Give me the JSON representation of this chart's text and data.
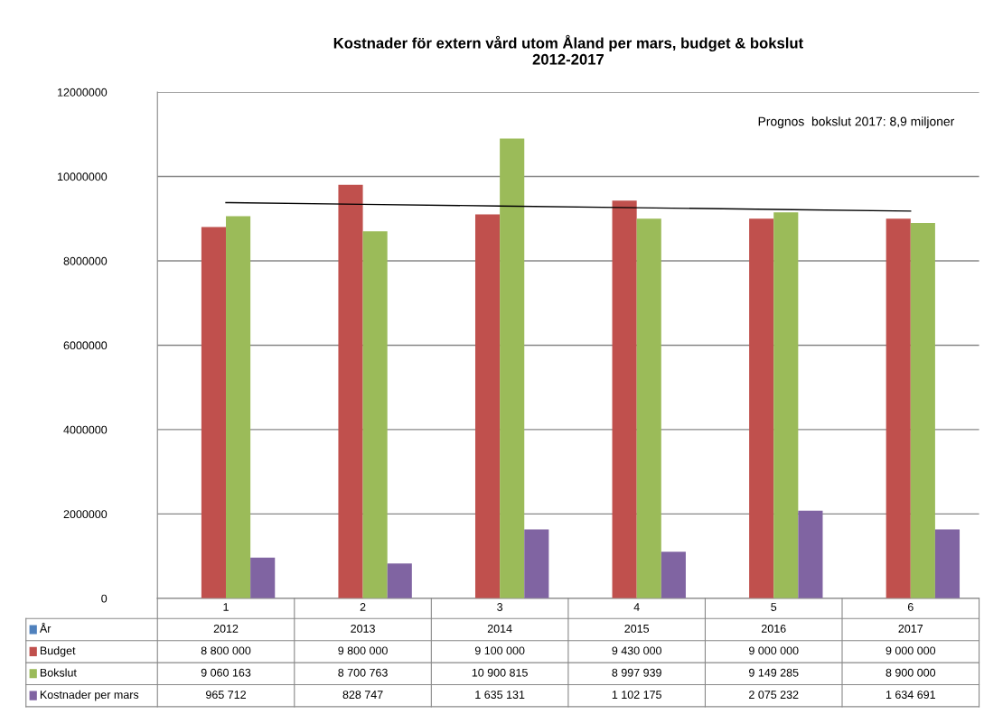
{
  "chart_data": {
    "type": "bar",
    "title": "Kostnader för extern vård utom Åland per mars, budget & bokslut\n2012-2017",
    "categories": [
      "1",
      "2",
      "3",
      "4",
      "5",
      "6"
    ],
    "series": [
      {
        "name": "År",
        "color": "#4f81bd",
        "values": [
          2012,
          2013,
          2014,
          2015,
          2016,
          2017
        ],
        "value_labels": [
          "2012",
          "2013",
          "2014",
          "2015",
          "2016",
          "2017"
        ]
      },
      {
        "name": "Budget",
        "color": "#c0504d",
        "values": [
          8800000,
          9800000,
          9100000,
          9430000,
          9000000,
          9000000
        ],
        "value_labels": [
          "8 800 000",
          "9 800 000",
          "9 100 000",
          "9 430 000",
          "9 000 000",
          "9 000 000"
        ]
      },
      {
        "name": "Bokslut",
        "color": "#9bbb59",
        "values": [
          9060163,
          8700763,
          10900815,
          8997939,
          9149285,
          8900000
        ],
        "value_labels": [
          "9 060 163",
          "8 700 763",
          "10 900 815",
          "8 997 939",
          "9 149 285",
          "8 900 000"
        ]
      },
      {
        "name": "Kostnader per mars",
        "color": "#8064a2",
        "values": [
          965712,
          828747,
          1635131,
          1102175,
          2075232,
          1634691
        ],
        "value_labels": [
          "965 712",
          "828 747",
          "1 635 131",
          "1 102 175",
          "2 075 232",
          "1 634 691"
        ]
      },
      {
        "type": "line",
        "color": "#000000",
        "values": [
          9380000,
          9340000,
          9300000,
          9260000,
          9220000,
          9180000
        ]
      }
    ],
    "ylim": [
      0,
      12000000
    ],
    "yticks": [
      0,
      2000000,
      4000000,
      6000000,
      8000000,
      10000000,
      12000000
    ],
    "grid": "y",
    "legend": "bottom",
    "annotations": [
      "Prognos  bokslut 2017: 8,9 miljoner"
    ]
  }
}
